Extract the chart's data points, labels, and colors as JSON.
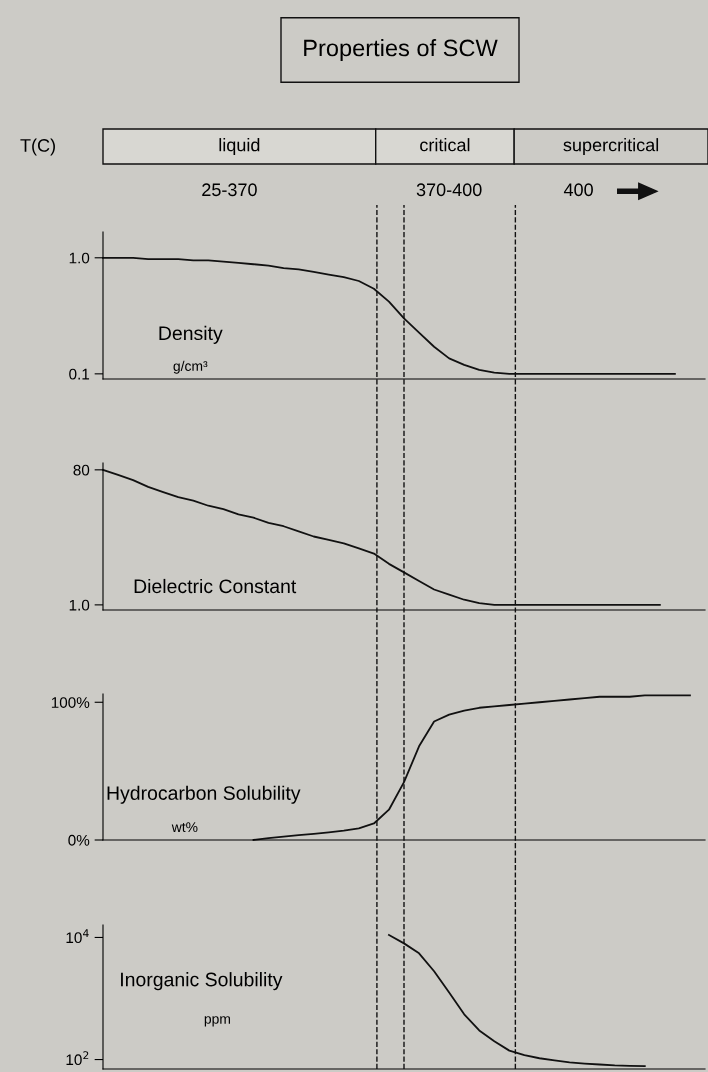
{
  "chart_data": [
    {
      "type": "other",
      "title": "Properties of SCW",
      "ylabel": "T(C)",
      "categories": [
        "liquid",
        "critical",
        "supercritical"
      ],
      "annotations": [
        "25-370",
        "370-400",
        "400"
      ]
    },
    {
      "type": "line",
      "ylabel": "Density",
      "annotations": [
        "g/cm³"
      ],
      "categories": [
        null,
        null,
        null,
        null,
        null,
        null,
        null,
        null,
        null,
        null,
        null,
        null,
        null,
        null,
        null,
        null,
        null,
        null,
        null,
        null,
        null,
        null,
        null,
        null,
        null,
        null,
        null,
        null,
        null,
        null,
        null,
        null,
        null,
        null,
        null,
        null,
        null,
        null,
        null,
        null,
        null
      ],
      "ylim": [
        0.06,
        1.2
      ],
      "yticks": [
        0.1,
        {
          "value": 1.0,
          "label": "1.0"
        }
      ],
      "tick_labels": "y",
      "marker": "none",
      "line_style": "solid",
      "series": [
        {
          "color": "#111111",
          "values": [
            1.0,
            1.0,
            1.0,
            0.99,
            0.99,
            0.99,
            0.98,
            0.98,
            0.97,
            0.96,
            0.95,
            0.94,
            0.92,
            0.91,
            0.89,
            0.87,
            0.85,
            0.82,
            0.76,
            0.66,
            0.53,
            0.42,
            0.31,
            0.22,
            0.17,
            0.13,
            0.11,
            0.1,
            0.1,
            0.1,
            0.1,
            0.1,
            0.1,
            0.1,
            0.1,
            0.1,
            0.1,
            0.1,
            0.1,
            null,
            null
          ]
        }
      ]
    },
    {
      "type": "line",
      "ylabel": "Dielectric Constant",
      "categories": [
        null,
        null,
        null,
        null,
        null,
        null,
        null,
        null,
        null,
        null,
        null,
        null,
        null,
        null,
        null,
        null,
        null,
        null,
        null,
        null,
        null,
        null,
        null,
        null,
        null,
        null,
        null,
        null,
        null,
        null,
        null,
        null,
        null,
        null,
        null,
        null,
        null,
        null,
        null,
        null,
        null
      ],
      "ylim": [
        -2,
        84
      ],
      "yticks": [
        {
          "value": 1.0,
          "label": "1.0"
        },
        80
      ],
      "tick_labels": "y",
      "marker": "none",
      "line_style": "solid",
      "series": [
        {
          "color": "#111111",
          "values": [
            80,
            77,
            74,
            70,
            67,
            64,
            62,
            59,
            57,
            54,
            52,
            49,
            47,
            44,
            41,
            39,
            37,
            34,
            31,
            25,
            20,
            15,
            10,
            7,
            4,
            2,
            1,
            1,
            1,
            1,
            1,
            1,
            1,
            1,
            1,
            1,
            1,
            1,
            null,
            null,
            null
          ]
        }
      ]
    },
    {
      "type": "line",
      "ylabel": "Hydrocarbon Solubility",
      "annotations": [
        "wt%"
      ],
      "categories": [
        null,
        null,
        null,
        null,
        null,
        null,
        null,
        null,
        null,
        null,
        null,
        null,
        null,
        null,
        null,
        null,
        null,
        null,
        null,
        null,
        null,
        null,
        null,
        null,
        null,
        null,
        null,
        null,
        null,
        null,
        null,
        null,
        null,
        null,
        null,
        null,
        null,
        null,
        null,
        null,
        null
      ],
      "ylim": [
        0,
        106
      ],
      "yticks": [
        {
          "value": 0,
          "label": "0%"
        },
        {
          "value": 100,
          "label": "100%"
        }
      ],
      "tick_labels": "y",
      "marker": "none",
      "line_style": "solid",
      "series": [
        {
          "color": "#111111",
          "values": [
            null,
            null,
            null,
            null,
            null,
            null,
            null,
            null,
            null,
            null,
            0,
            1.3,
            2.5,
            3.5,
            4.4,
            5.5,
            6.8,
            8.4,
            12,
            22,
            42,
            68,
            86,
            91,
            94,
            96,
            97,
            98,
            99,
            100,
            101,
            102,
            103,
            104,
            104,
            104,
            105,
            105,
            105,
            105,
            null
          ]
        }
      ]
    },
    {
      "type": "line",
      "ylabel": "Inorganic Solubility",
      "annotations": [
        "ppm"
      ],
      "log": "y",
      "categories": [
        null,
        null,
        null,
        null,
        null,
        null,
        null,
        null,
        null,
        null,
        null,
        null,
        null,
        null,
        null,
        null,
        null,
        null,
        null,
        null,
        null,
        null,
        null,
        null,
        null,
        null,
        null,
        null,
        null,
        null,
        null,
        null,
        null,
        null,
        null,
        null,
        null,
        null,
        null,
        null,
        null
      ],
      "ylim": [
        70,
        16000
      ],
      "yticks": [
        {
          "value": 100,
          "label": "10$^{2}$"
        },
        {
          "value": 10000,
          "label": "10$^{4}$"
        }
      ],
      "tick_labels": "y",
      "marker": "none",
      "line_style": "solid",
      "series": [
        {
          "color": "#111111",
          "values": [
            null,
            null,
            null,
            null,
            null,
            null,
            null,
            null,
            null,
            null,
            null,
            null,
            null,
            null,
            null,
            null,
            null,
            null,
            null,
            11000,
            8000,
            5500,
            2800,
            1250,
            550,
            300,
            200,
            140,
            118,
            105,
            97,
            90,
            86,
            83,
            80,
            79,
            78,
            null,
            null,
            null,
            null
          ]
        }
      ]
    }
  ]
}
